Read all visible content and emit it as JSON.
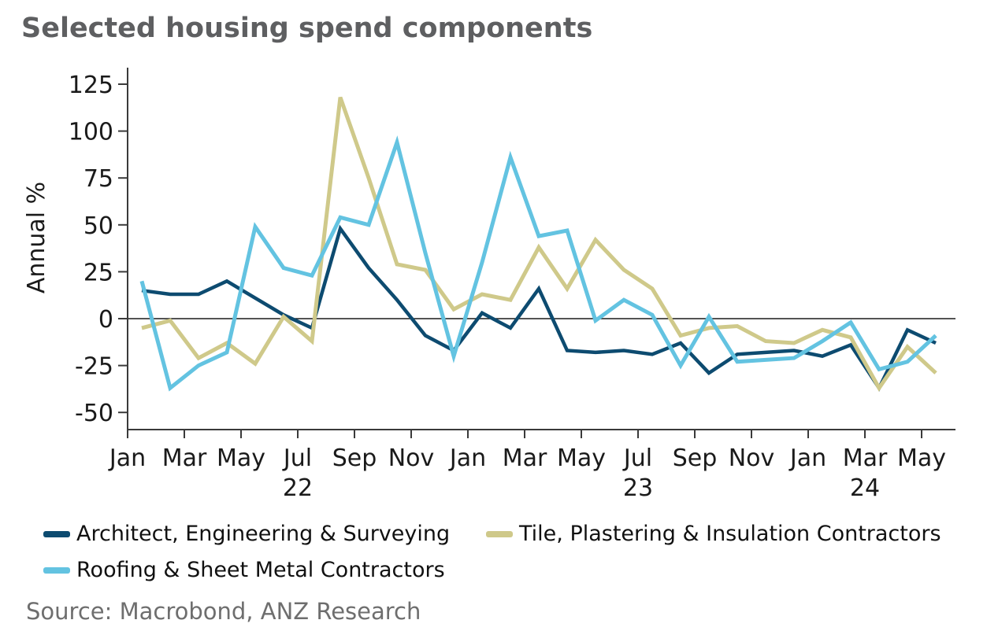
{
  "page": {
    "title": "Selected housing spend components",
    "source": "Source: Macrobond, ANZ Research"
  },
  "chart_data": {
    "type": "line",
    "title": "Selected housing spend components",
    "xlabel": "",
    "ylabel": "Annual %",
    "ylim": [
      -60,
      133
    ],
    "yticks": [
      125,
      100,
      75,
      50,
      25,
      0,
      -25,
      -50
    ],
    "zero_line": true,
    "grid": false,
    "legend_position": "bottom",
    "x_tick_labels": [
      "Jan",
      "Mar",
      "May",
      "Jul",
      "Sep",
      "Nov",
      "Jan",
      "Mar",
      "May",
      "Jul",
      "Sep",
      "Nov",
      "Jan",
      "Mar",
      "May"
    ],
    "year_labels": [
      {
        "label": "22",
        "tick_index": 3
      },
      {
        "label": "23",
        "tick_index": 9
      },
      {
        "label": "24",
        "tick_index": 13
      }
    ],
    "categories": [
      "Jan 22",
      "Feb 22",
      "Mar 22",
      "Apr 22",
      "May 22",
      "Jun 22",
      "Jul 22",
      "Aug 22",
      "Sep 22",
      "Oct 22",
      "Nov 22",
      "Dec 22",
      "Jan 23",
      "Feb 23",
      "Mar 23",
      "Apr 23",
      "May 23",
      "Jun 23",
      "Jul 23",
      "Aug 23",
      "Sep 23",
      "Oct 23",
      "Nov 23",
      "Dec 23",
      "Jan 24",
      "Feb 24",
      "Mar 24",
      "Apr 24",
      "May 24"
    ],
    "series": [
      {
        "name": "Architect, Engineering & Surveying",
        "color": "#0d4b70",
        "width": 4.5,
        "values": [
          15,
          13,
          13,
          20,
          11,
          2,
          -5,
          48,
          27,
          10,
          -9,
          -17,
          3,
          -5,
          16,
          -17,
          -18,
          -17,
          -19,
          -13,
          -29,
          -19,
          -18,
          -17,
          -20,
          -14,
          -37,
          -6,
          -13
        ]
      },
      {
        "name": "Tile, Plastering & Insulation Contractors",
        "color": "#cfc98a",
        "width": 5,
        "values": [
          -5,
          -1,
          -21,
          -13,
          -24,
          1,
          -12,
          118,
          75,
          29,
          26,
          5,
          13,
          10,
          38,
          16,
          42,
          26,
          16,
          -9,
          -5,
          -4,
          -12,
          -13,
          -6,
          -10,
          -37,
          -15,
          -29
        ]
      },
      {
        "name": "Roofing & Sheet Metal Contractors",
        "color": "#63c3e1",
        "width": 5,
        "values": [
          20,
          -37,
          -25,
          -18,
          49,
          27,
          23,
          54,
          50,
          94,
          35,
          -20,
          30,
          86,
          44,
          47,
          -1,
          10,
          2,
          -25,
          1,
          -23,
          -22,
          -21,
          -12,
          -2,
          -27,
          -23,
          -9
        ]
      }
    ]
  }
}
